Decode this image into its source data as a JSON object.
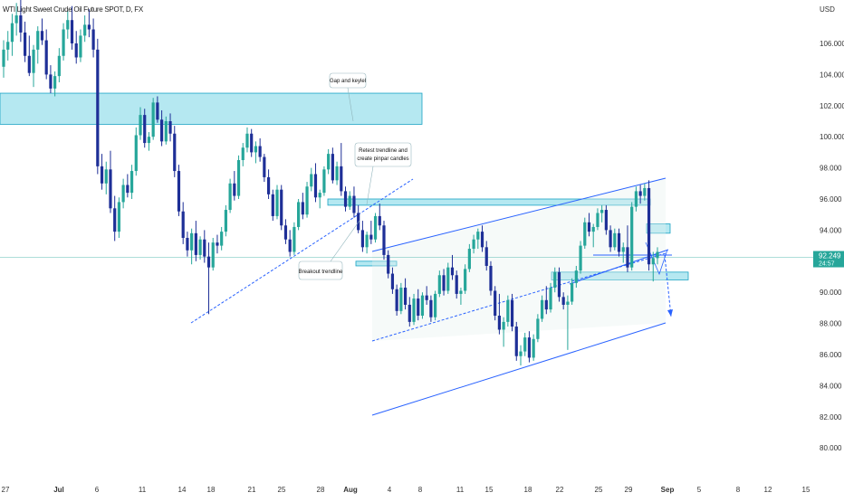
{
  "chart_data": {
    "type": "candlestick",
    "title": "WTI Light Sweet Crude Oil Future SPOT, D, FX",
    "currency": "USD",
    "y_ticks": [
      "106.000",
      "104.000",
      "102.000",
      "100.000",
      "98.000",
      "96.000",
      "94.000",
      "92.000",
      "90.000",
      "88.000",
      "86.000",
      "84.000",
      "82.000",
      "80.000"
    ],
    "ylim": [
      79.0,
      109.5
    ],
    "x_ticks": [
      "27",
      "Jul",
      "6",
      "11",
      "14",
      "18",
      "21",
      "25",
      "28",
      "Aug",
      "4",
      "8",
      "11",
      "15",
      "18",
      "22",
      "25",
      "29",
      "Sep",
      "5",
      "8",
      "12",
      "15"
    ],
    "last_price": "92.249",
    "countdown": "24:57",
    "colors": {
      "up": "#26a69a",
      "down": "#1e2f97",
      "zone": "#a8e4ee",
      "zone_border": "#1aa3c4",
      "trend": "#2962ff",
      "price_line": "#26a69a"
    },
    "zones": [
      {
        "y_top": 102.8,
        "y_bottom": 100.8
      },
      {
        "y_top": 96.0,
        "y_bottom": 95.6
      },
      {
        "y_top": 94.4,
        "y_bottom": 93.8
      },
      {
        "y_top": 92.0,
        "y_bottom": 91.7
      },
      {
        "y_top": 91.3,
        "y_bottom": 90.8
      }
    ],
    "annotations": [
      {
        "text": "Gap and keylel"
      },
      {
        "text": "Retest trendline and"
      },
      {
        "text": "create pinpar candles"
      },
      {
        "text": "Breakout trendline"
      }
    ],
    "candles": [
      [
        104.5,
        106.2,
        103.8,
        105.6
      ],
      [
        105.6,
        106.8,
        104.9,
        106.1
      ],
      [
        106.1,
        107.9,
        105.2,
        107.3
      ],
      [
        107.3,
        108.6,
        106.5,
        107.8
      ],
      [
        107.8,
        108.9,
        106.1,
        106.7
      ],
      [
        106.7,
        107.4,
        104.8,
        105.2
      ],
      [
        105.2,
        106.5,
        103.9,
        104.1
      ],
      [
        104.1,
        105.9,
        103.2,
        105.6
      ],
      [
        105.6,
        107.1,
        104.7,
        106.8
      ],
      [
        106.8,
        107.6,
        105.9,
        106.2
      ],
      [
        106.2,
        106.9,
        103.7,
        104.0
      ],
      [
        104.0,
        104.6,
        102.8,
        103.1
      ],
      [
        103.1,
        104.2,
        102.6,
        103.9
      ],
      [
        103.9,
        105.7,
        103.5,
        105.2
      ],
      [
        105.2,
        107.3,
        104.9,
        106.9
      ],
      [
        106.9,
        108.1,
        106.3,
        107.5
      ],
      [
        107.5,
        108.4,
        105.6,
        106.0
      ],
      [
        106.0,
        106.8,
        104.7,
        105.1
      ],
      [
        105.1,
        106.9,
        104.8,
        106.5
      ],
      [
        106.5,
        107.8,
        106.1,
        107.2
      ],
      [
        107.2,
        108.2,
        106.4,
        106.9
      ],
      [
        106.9,
        107.6,
        105.1,
        105.6
      ],
      [
        105.6,
        106.3,
        97.6,
        98.1
      ],
      [
        98.1,
        98.9,
        96.6,
        97.0
      ],
      [
        97.0,
        98.4,
        96.3,
        97.9
      ],
      [
        97.9,
        99.1,
        95.1,
        95.4
      ],
      [
        95.4,
        96.2,
        93.3,
        93.9
      ],
      [
        93.9,
        96.1,
        93.5,
        95.8
      ],
      [
        95.8,
        97.3,
        95.4,
        96.9
      ],
      [
        96.9,
        97.6,
        96.1,
        96.4
      ],
      [
        96.4,
        98.2,
        96.0,
        97.8
      ],
      [
        97.8,
        100.6,
        97.5,
        100.1
      ],
      [
        100.1,
        101.9,
        99.8,
        101.4
      ],
      [
        101.4,
        101.8,
        99.3,
        99.6
      ],
      [
        99.6,
        100.3,
        99.1,
        100.0
      ],
      [
        100.0,
        102.5,
        99.8,
        102.2
      ],
      [
        102.2,
        102.6,
        100.9,
        101.1
      ],
      [
        101.1,
        101.7,
        99.4,
        99.7
      ],
      [
        99.7,
        101.3,
        99.5,
        101.0
      ],
      [
        101.0,
        101.5,
        99.7,
        100.2
      ],
      [
        100.2,
        100.7,
        97.4,
        97.8
      ],
      [
        97.8,
        98.2,
        94.9,
        95.2
      ],
      [
        95.2,
        95.8,
        93.1,
        93.5
      ],
      [
        93.5,
        93.9,
        92.3,
        92.7
      ],
      [
        92.7,
        94.1,
        91.8,
        93.8
      ],
      [
        93.8,
        94.6,
        92.0,
        92.4
      ],
      [
        92.4,
        93.6,
        92.1,
        93.4
      ],
      [
        93.4,
        94.0,
        91.9,
        92.3
      ],
      [
        92.3,
        93.2,
        88.6,
        91.6
      ],
      [
        91.6,
        93.5,
        91.4,
        93.2
      ],
      [
        93.2,
        93.7,
        92.5,
        93.0
      ],
      [
        93.0,
        94.2,
        92.7,
        93.9
      ],
      [
        93.9,
        95.6,
        93.6,
        95.3
      ],
      [
        95.3,
        97.3,
        95.1,
        97.0
      ],
      [
        97.0,
        97.8,
        95.9,
        96.2
      ],
      [
        96.2,
        98.8,
        96.0,
        98.5
      ],
      [
        98.5,
        99.6,
        98.1,
        99.3
      ],
      [
        99.3,
        100.6,
        99.0,
        100.2
      ],
      [
        100.2,
        100.5,
        98.7,
        99.0
      ],
      [
        99.0,
        99.7,
        98.3,
        99.4
      ],
      [
        99.4,
        99.9,
        98.4,
        98.7
      ],
      [
        98.7,
        98.9,
        97.1,
        97.4
      ],
      [
        97.4,
        97.9,
        96.0,
        96.3
      ],
      [
        96.3,
        96.6,
        94.6,
        94.9
      ],
      [
        94.9,
        96.9,
        94.7,
        96.6
      ],
      [
        96.6,
        96.9,
        94.0,
        94.3
      ],
      [
        94.3,
        94.7,
        93.1,
        93.4
      ],
      [
        93.4,
        94.0,
        92.3,
        92.6
      ],
      [
        92.6,
        94.5,
        92.4,
        94.2
      ],
      [
        94.2,
        96.0,
        94.0,
        95.8
      ],
      [
        95.8,
        96.4,
        94.7,
        95.0
      ],
      [
        95.0,
        97.1,
        94.8,
        96.8
      ],
      [
        96.8,
        98.0,
        96.5,
        97.6
      ],
      [
        97.6,
        98.3,
        95.8,
        96.1
      ],
      [
        96.1,
        96.6,
        95.4,
        96.4
      ],
      [
        96.4,
        98.1,
        96.2,
        97.9
      ],
      [
        97.9,
        99.2,
        97.6,
        98.9
      ],
      [
        98.9,
        99.3,
        97.0,
        97.2
      ],
      [
        97.2,
        98.4,
        96.9,
        98.1
      ],
      [
        98.1,
        99.6,
        96.2,
        96.5
      ],
      [
        96.5,
        96.8,
        95.2,
        95.5
      ],
      [
        95.5,
        96.5,
        95.3,
        96.2
      ],
      [
        96.2,
        96.8,
        94.8,
        95.1
      ],
      [
        95.1,
        95.6,
        93.8,
        94.0
      ],
      [
        94.0,
        94.6,
        92.6,
        92.9
      ],
      [
        92.9,
        93.9,
        92.5,
        93.7
      ],
      [
        93.7,
        94.6,
        93.1,
        93.4
      ],
      [
        93.4,
        95.1,
        93.2,
        94.9
      ],
      [
        94.9,
        95.7,
        94.0,
        94.3
      ],
      [
        94.3,
        94.6,
        92.1,
        92.4
      ],
      [
        92.4,
        92.7,
        90.9,
        91.2
      ],
      [
        91.2,
        91.6,
        89.9,
        90.2
      ],
      [
        90.2,
        90.5,
        88.5,
        88.8
      ],
      [
        88.8,
        90.6,
        88.6,
        90.3
      ],
      [
        90.3,
        90.9,
        88.9,
        89.2
      ],
      [
        89.2,
        89.7,
        87.8,
        88.1
      ],
      [
        88.1,
        89.9,
        87.9,
        89.6
      ],
      [
        89.6,
        90.2,
        88.2,
        88.5
      ],
      [
        88.5,
        90.0,
        88.3,
        89.8
      ],
      [
        89.8,
        90.4,
        89.2,
        89.5
      ],
      [
        89.5,
        89.8,
        88.1,
        88.4
      ],
      [
        88.4,
        90.1,
        88.2,
        89.9
      ],
      [
        89.9,
        91.4,
        89.7,
        91.1
      ],
      [
        91.1,
        91.5,
        89.8,
        90.1
      ],
      [
        90.1,
        91.9,
        89.9,
        91.6
      ],
      [
        91.6,
        92.4,
        90.8,
        91.1
      ],
      [
        91.1,
        91.4,
        89.6,
        89.9
      ],
      [
        89.9,
        90.3,
        89.2,
        90.1
      ],
      [
        90.1,
        91.8,
        89.9,
        91.5
      ],
      [
        91.5,
        93.1,
        91.3,
        92.8
      ],
      [
        92.8,
        93.7,
        92.5,
        93.4
      ],
      [
        93.4,
        94.1,
        92.8,
        93.9
      ],
      [
        93.9,
        94.3,
        92.6,
        92.9
      ],
      [
        92.9,
        93.3,
        91.4,
        91.7
      ],
      [
        91.7,
        92.0,
        89.8,
        90.1
      ],
      [
        90.1,
        90.4,
        88.2,
        88.5
      ],
      [
        88.5,
        89.9,
        87.3,
        87.6
      ],
      [
        87.6,
        88.4,
        86.5,
        88.1
      ],
      [
        88.1,
        89.8,
        87.8,
        89.5
      ],
      [
        89.5,
        89.9,
        87.5,
        87.8
      ],
      [
        87.8,
        88.1,
        85.6,
        85.9
      ],
      [
        85.9,
        86.6,
        85.3,
        86.2
      ],
      [
        86.2,
        87.4,
        85.9,
        87.1
      ],
      [
        87.1,
        87.5,
        85.5,
        85.8
      ],
      [
        85.8,
        87.3,
        85.6,
        87.0
      ],
      [
        87.0,
        88.6,
        86.8,
        88.3
      ],
      [
        88.3,
        89.8,
        88.1,
        89.5
      ],
      [
        89.5,
        90.4,
        88.6,
        88.9
      ],
      [
        88.9,
        90.6,
        88.7,
        90.3
      ],
      [
        90.3,
        91.6,
        90.0,
        91.3
      ],
      [
        91.3,
        91.6,
        89.4,
        89.7
      ],
      [
        89.7,
        90.0,
        88.9,
        89.2
      ],
      [
        89.2,
        89.8,
        86.3,
        89.4
      ],
      [
        89.4,
        90.9,
        89.2,
        90.6
      ],
      [
        90.6,
        91.7,
        90.3,
        91.4
      ],
      [
        91.4,
        93.3,
        91.2,
        93.0
      ],
      [
        93.0,
        94.8,
        92.8,
        94.5
      ],
      [
        94.5,
        95.1,
        93.6,
        93.9
      ],
      [
        93.9,
        94.4,
        92.9,
        94.2
      ],
      [
        94.2,
        95.4,
        94.0,
        95.1
      ],
      [
        95.1,
        95.6,
        94.5,
        95.3
      ],
      [
        95.3,
        95.6,
        93.7,
        94.0
      ],
      [
        94.0,
        94.3,
        92.6,
        92.9
      ],
      [
        92.9,
        94.1,
        92.7,
        93.8
      ],
      [
        93.8,
        94.1,
        92.3,
        92.6
      ],
      [
        92.6,
        93.2,
        91.9,
        92.9
      ],
      [
        92.9,
        94.3,
        91.3,
        91.6
      ],
      [
        91.6,
        95.8,
        91.4,
        95.5
      ],
      [
        95.5,
        96.8,
        95.2,
        96.5
      ],
      [
        96.5,
        96.9,
        95.7,
        96.2
      ],
      [
        96.2,
        97.0,
        95.9,
        96.7
      ],
      [
        96.7,
        97.2,
        91.4,
        91.8
      ],
      [
        91.8,
        92.6,
        90.7,
        92.2
      ],
      [
        92.2,
        92.9,
        91.8,
        92.6
      ]
    ]
  }
}
